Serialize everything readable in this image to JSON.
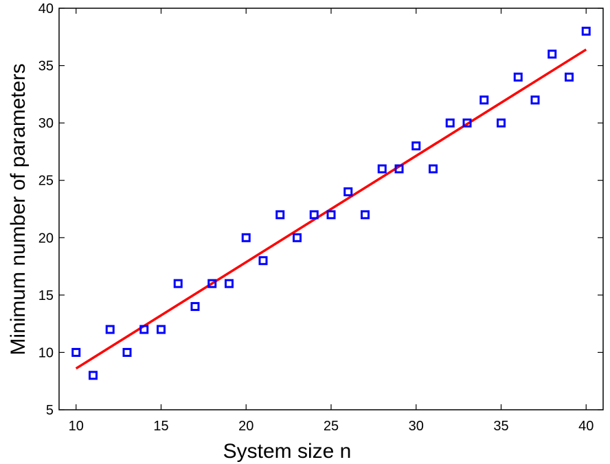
{
  "chart_data": {
    "type": "scatter",
    "title": "",
    "xlabel": "System size n",
    "ylabel": "Minimum number of parameters",
    "xlim": [
      9,
      41
    ],
    "ylim": [
      5,
      40
    ],
    "xticks": [
      10,
      15,
      20,
      25,
      30,
      35,
      40
    ],
    "yticks": [
      5,
      10,
      15,
      20,
      25,
      30,
      35,
      40
    ],
    "grid": false,
    "series": [
      {
        "kind": "scatter",
        "marker": "square",
        "color": "#0000ff",
        "x": [
          10,
          11,
          12,
          13,
          14,
          15,
          16,
          17,
          18,
          19,
          20,
          21,
          22,
          23,
          24,
          25,
          26,
          27,
          28,
          29,
          30,
          31,
          32,
          33,
          34,
          35,
          36,
          37,
          38,
          39,
          40
        ],
        "y": [
          10,
          8,
          12,
          10,
          12,
          12,
          16,
          14,
          16,
          16,
          20,
          18,
          22,
          20,
          22,
          22,
          24,
          22,
          26,
          26,
          28,
          26,
          30,
          30,
          32,
          30,
          34,
          32,
          36,
          34,
          38
        ]
      },
      {
        "kind": "line",
        "color": "#ff0000",
        "x": [
          10,
          40
        ],
        "y": [
          8.6,
          36.4
        ]
      }
    ]
  }
}
